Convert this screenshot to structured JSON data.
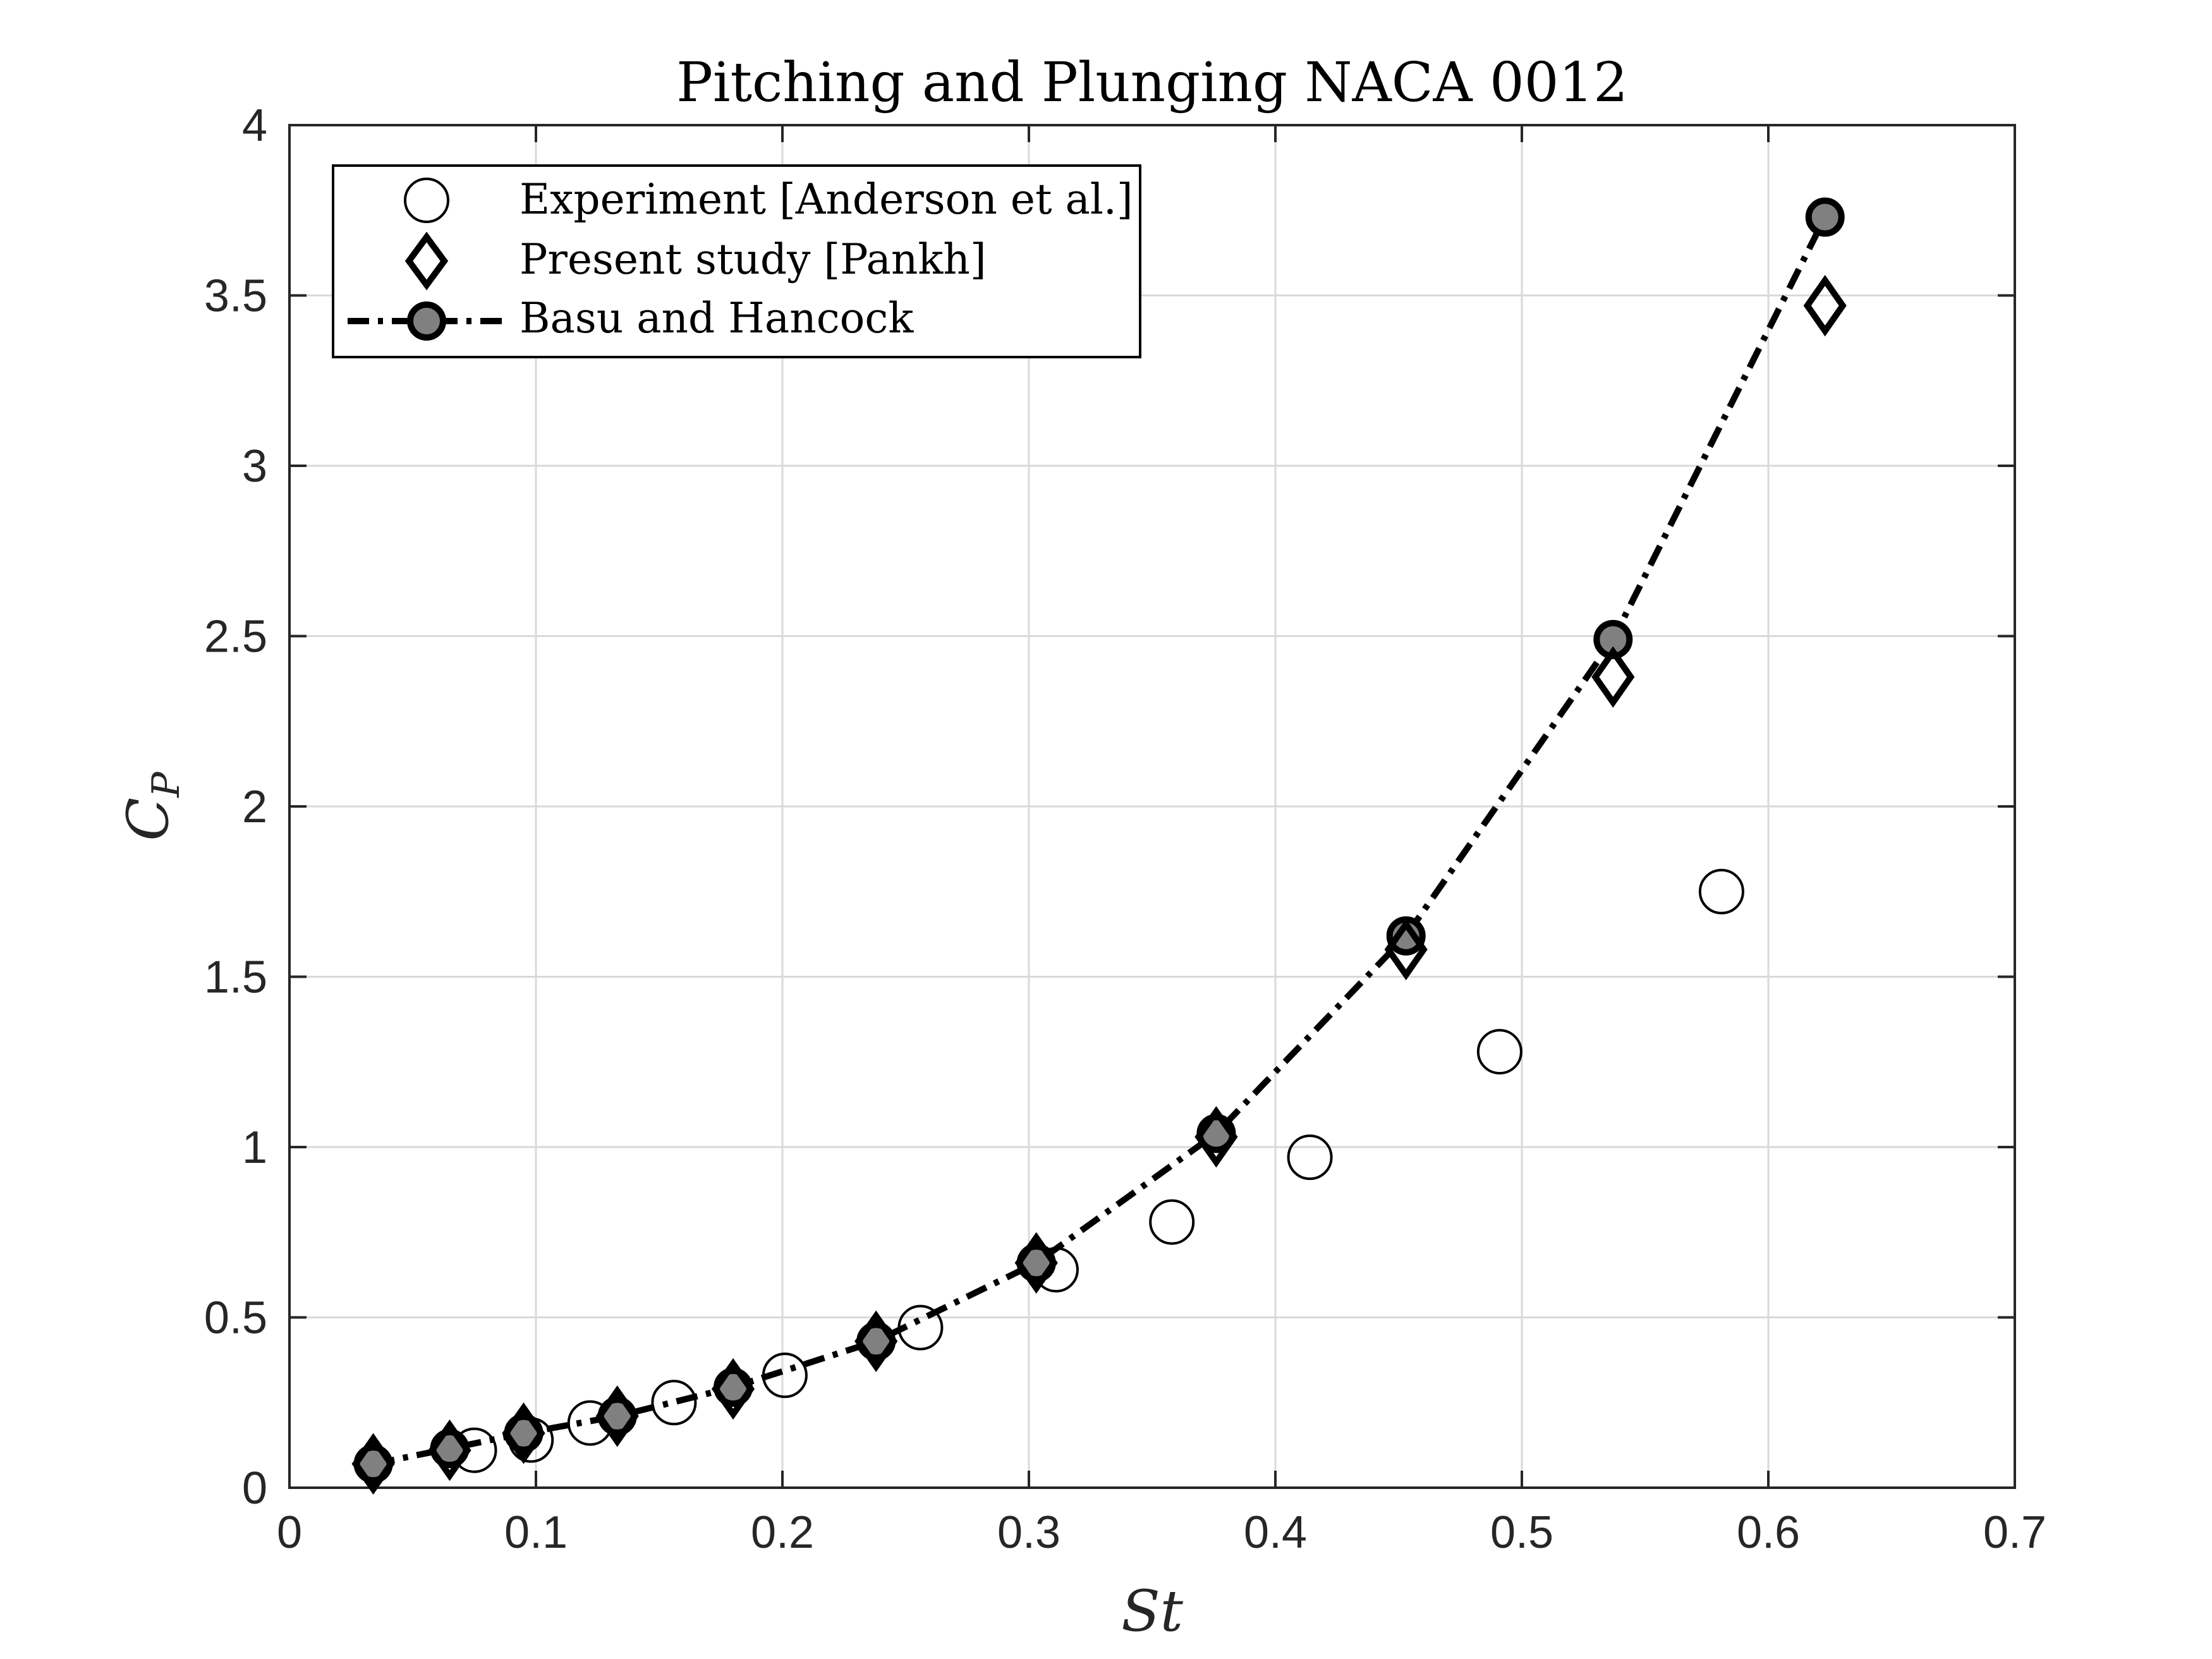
{
  "chart_data": {
    "type": "scatter",
    "title": "Pitching and Plunging NACA 0012",
    "xlabel": "St",
    "ylabel_main": "C",
    "ylabel_sub": "P",
    "xlim": [
      0,
      0.7
    ],
    "ylim": [
      0,
      4
    ],
    "xticks": [
      "0",
      "0.1",
      "0.2",
      "0.3",
      "0.4",
      "0.5",
      "0.6",
      "0.7"
    ],
    "yticks": [
      "0",
      "0.5",
      "1",
      "1.5",
      "2",
      "2.5",
      "3",
      "3.5",
      "4"
    ],
    "grid": true,
    "legend_position": "top-left",
    "series": [
      {
        "name": "Experiment [Anderson et al.]",
        "style": "open-circle",
        "color": "#000000",
        "x": [
          0.075,
          0.098,
          0.122,
          0.156,
          0.201,
          0.256,
          0.311,
          0.358,
          0.414,
          0.491,
          0.581
        ],
        "y": [
          0.11,
          0.14,
          0.19,
          0.25,
          0.33,
          0.47,
          0.64,
          0.78,
          0.97,
          1.28,
          1.75
        ]
      },
      {
        "name": "Present study [Pankh]",
        "style": "open-diamond",
        "color": "#000000",
        "x": [
          0.034,
          0.065,
          0.095,
          0.133,
          0.18,
          0.238,
          0.303,
          0.376,
          0.453,
          0.537,
          0.623
        ],
        "y": [
          0.07,
          0.11,
          0.16,
          0.21,
          0.29,
          0.43,
          0.66,
          1.03,
          1.58,
          2.38,
          3.47
        ]
      },
      {
        "name": "Basu and Hancock",
        "style": "dash-dot-line-filled-circle",
        "color": "#000000",
        "marker_fill": "#808080",
        "x": [
          0.034,
          0.065,
          0.095,
          0.133,
          0.18,
          0.238,
          0.303,
          0.376,
          0.453,
          0.537,
          0.623
        ],
        "y": [
          0.07,
          0.115,
          0.16,
          0.21,
          0.295,
          0.43,
          0.66,
          1.04,
          1.62,
          2.49,
          3.73
        ]
      }
    ]
  }
}
